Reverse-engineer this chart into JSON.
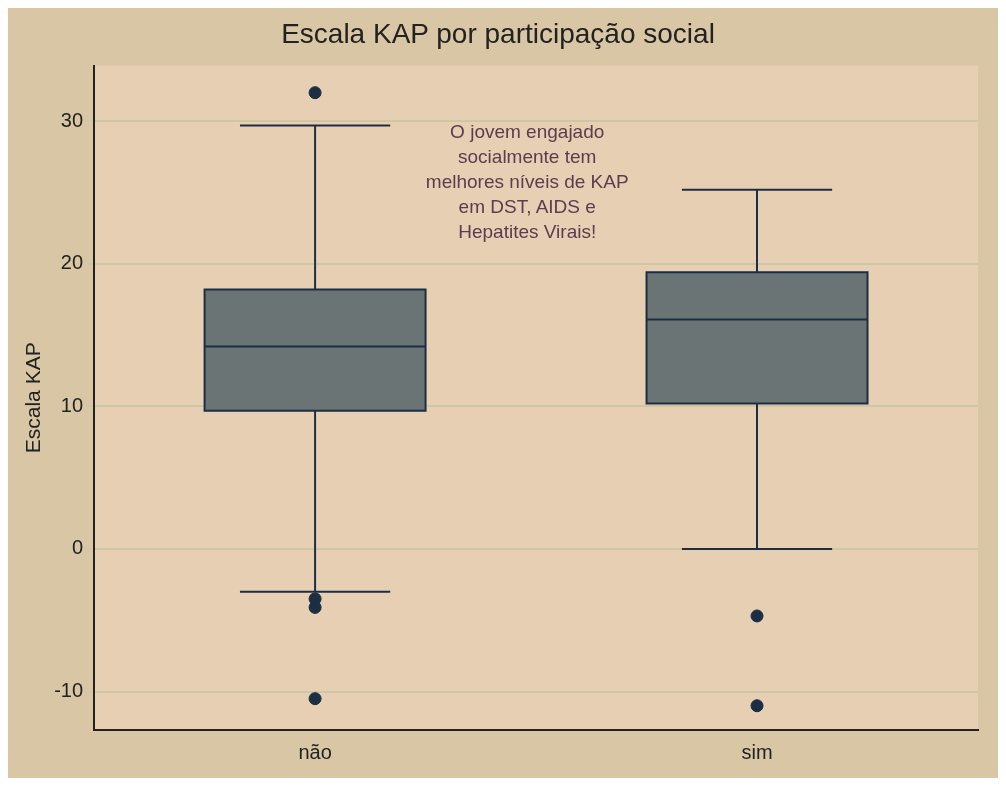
{
  "chart_data": {
    "type": "box",
    "title": "Escala KAP por participação social",
    "ylabel": "Escala KAP",
    "categories": [
      "não",
      "sim"
    ],
    "boxes": [
      {
        "low": -3,
        "q1": 9.7,
        "median": 14.2,
        "q3": 18.2,
        "high": 29.7,
        "outliers": [
          32,
          -3.5,
          -4.1,
          -10.5
        ]
      },
      {
        "low": 0,
        "q1": 10.2,
        "median": 16.1,
        "q3": 19.4,
        "high": 25.2,
        "outliers": [
          -4.7,
          -11
        ]
      }
    ],
    "color": "#6b7474",
    "ylim": [
      -12.7,
      33.9
    ],
    "yticks": [
      -10,
      0,
      10,
      20,
      30
    ],
    "grid": "y",
    "annotations": [
      "O jovem engajado socialmente tem melhores níveis de KAP em DST, AIDS e Hepatites Virais!"
    ]
  }
}
